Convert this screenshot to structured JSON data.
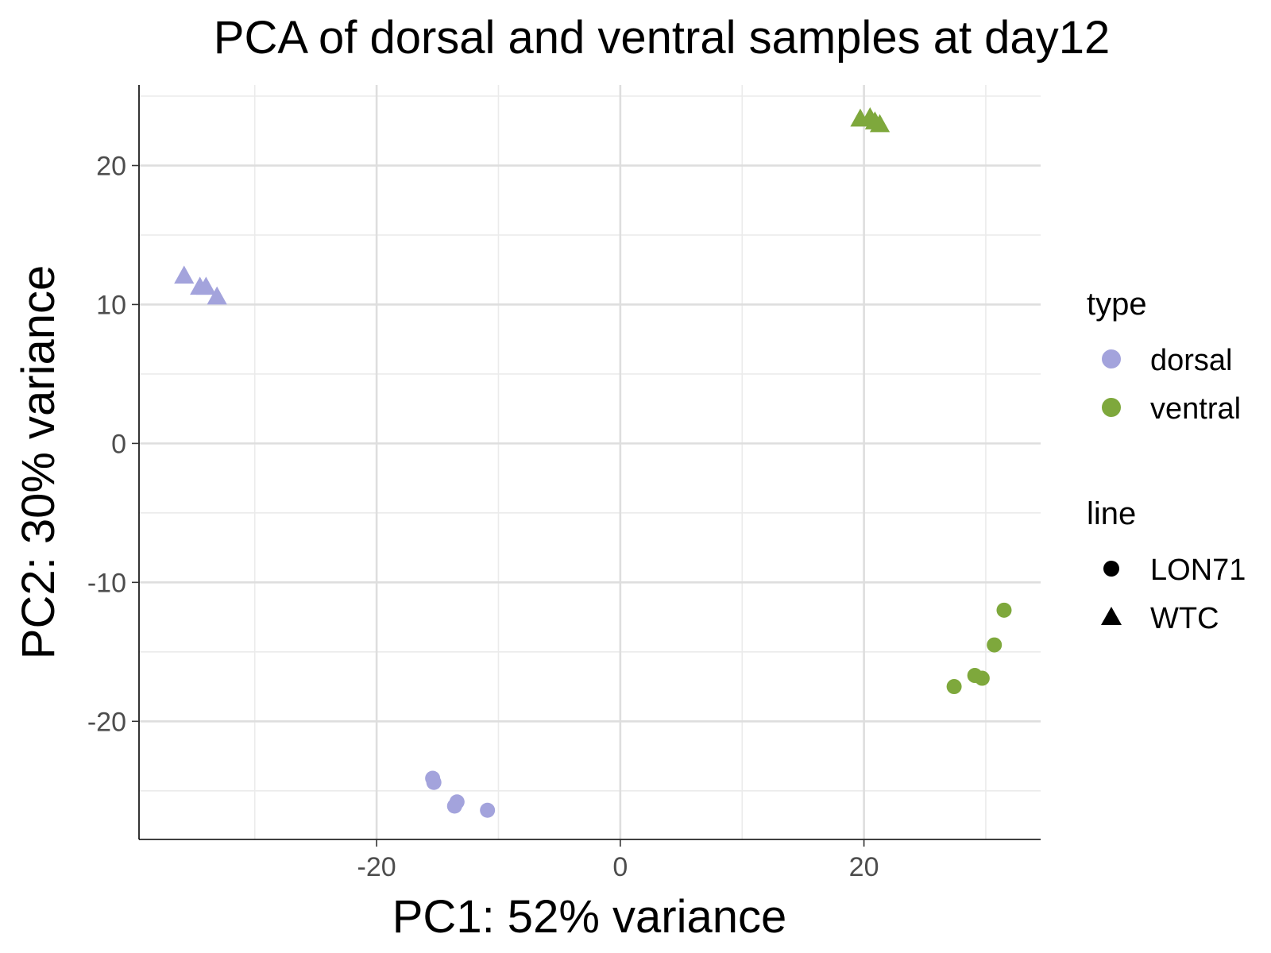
{
  "chart_data": {
    "type": "scatter",
    "title": "PCA of dorsal and ventral samples at day12",
    "xlabel": "PC1: 52% variance",
    "ylabel": "PC2: 30% variance",
    "xlim": [
      -39.5,
      34.5
    ],
    "ylim": [
      -28.5,
      25.8
    ],
    "x_ticks": [
      -20,
      0,
      20
    ],
    "x_tick_labels": [
      "-20",
      "0",
      "20"
    ],
    "y_ticks": [
      -20,
      -10,
      0,
      10,
      20
    ],
    "y_tick_labels": [
      "-20",
      "-10",
      "0",
      "10",
      "20"
    ],
    "x_minor_ticks": [
      -30,
      -10,
      10,
      30
    ],
    "y_minor_ticks": [
      -25,
      -15,
      -5,
      5,
      15,
      25
    ],
    "grid": true,
    "legend_position": "right",
    "legend": {
      "color_title": "type",
      "color_items": [
        {
          "label": "dorsal",
          "color": "#a3a3dc"
        },
        {
          "label": "ventral",
          "color": "#7ea83c"
        }
      ],
      "shape_title": "line",
      "shape_items": [
        {
          "label": "LON71",
          "shape": "circle"
        },
        {
          "label": "WTC",
          "shape": "triangle"
        }
      ]
    },
    "points": [
      {
        "x": -35.8,
        "y": 12.0,
        "type": "dorsal",
        "line": "WTC"
      },
      {
        "x": -34.5,
        "y": 11.2,
        "type": "dorsal",
        "line": "WTC"
      },
      {
        "x": -34.0,
        "y": 11.2,
        "type": "dorsal",
        "line": "WTC"
      },
      {
        "x": -33.1,
        "y": 10.5,
        "type": "dorsal",
        "line": "WTC"
      },
      {
        "x": -15.4,
        "y": -24.1,
        "type": "dorsal",
        "line": "LON71"
      },
      {
        "x": -15.3,
        "y": -24.4,
        "type": "dorsal",
        "line": "LON71"
      },
      {
        "x": -13.4,
        "y": -25.8,
        "type": "dorsal",
        "line": "LON71"
      },
      {
        "x": -13.6,
        "y": -26.1,
        "type": "dorsal",
        "line": "LON71"
      },
      {
        "x": -10.9,
        "y": -26.4,
        "type": "dorsal",
        "line": "LON71"
      },
      {
        "x": 19.7,
        "y": 23.3,
        "type": "ventral",
        "line": "WTC"
      },
      {
        "x": 20.5,
        "y": 23.4,
        "type": "ventral",
        "line": "WTC"
      },
      {
        "x": 20.9,
        "y": 23.1,
        "type": "ventral",
        "line": "WTC"
      },
      {
        "x": 21.3,
        "y": 22.9,
        "type": "ventral",
        "line": "WTC"
      },
      {
        "x": 27.4,
        "y": -17.5,
        "type": "ventral",
        "line": "LON71"
      },
      {
        "x": 29.1,
        "y": -16.7,
        "type": "ventral",
        "line": "LON71"
      },
      {
        "x": 29.7,
        "y": -16.9,
        "type": "ventral",
        "line": "LON71"
      },
      {
        "x": 30.7,
        "y": -14.5,
        "type": "ventral",
        "line": "LON71"
      },
      {
        "x": 31.5,
        "y": -12.0,
        "type": "ventral",
        "line": "LON71"
      }
    ]
  }
}
